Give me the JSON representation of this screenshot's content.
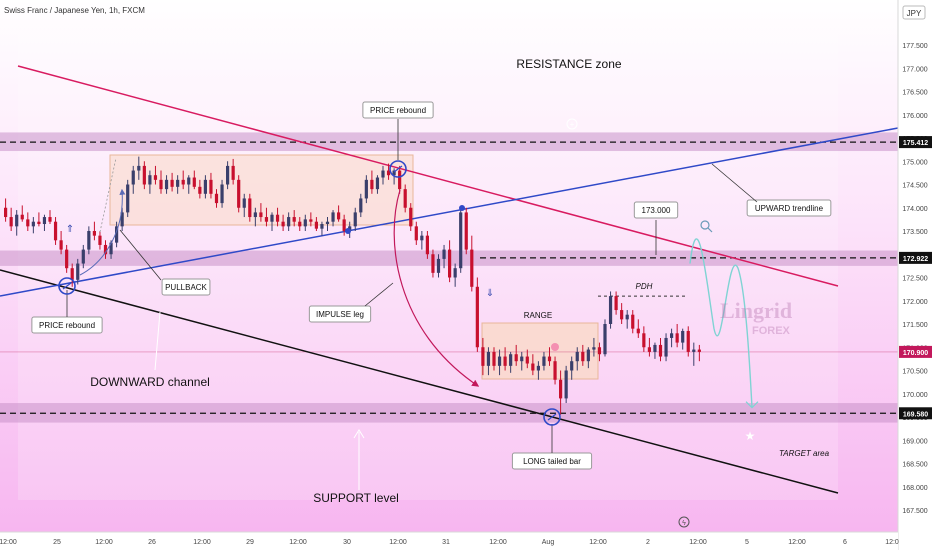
{
  "header": {
    "symbol_title": "Swiss Franc / Japanese Yen, 1h, FXCM",
    "currency": "JPY"
  },
  "colors": {
    "background_top": "#ffffff",
    "background_bottom": "#f7b6f0",
    "up_candle": "#3a3f6b",
    "down_candle": "#c8102e",
    "channel_upper": "#d81b60",
    "channel_lower": "#111111",
    "trendline": "#2f49c8",
    "zone_fill": "#c991c9",
    "range_fill": "#f9d9c6",
    "projection": "#7fd3d3",
    "price_tag_bg": "#c2185b"
  },
  "chart_data": {
    "type": "candlestick",
    "title": "Swiss Franc / Japanese Yen, 1h, FXCM",
    "yaxis": {
      "ticks": [
        "177.500",
        "177.000",
        "176.500",
        "176.000",
        "175.500",
        "175.000",
        "174.500",
        "174.000",
        "173.500",
        "173.000",
        "172.500",
        "172.000",
        "171.500",
        "171.000",
        "170.500",
        "170.000",
        "169.500",
        "169.000",
        "168.500",
        "168.000",
        "167.500"
      ],
      "range": [
        167.15,
        177.95
      ]
    },
    "xaxis": {
      "ticks": [
        "12:00",
        "25",
        "12:00",
        "26",
        "12:00",
        "29",
        "12:00",
        "30",
        "12:00",
        "31",
        "12:00",
        "Aug",
        "12:00",
        "2",
        "12:00",
        "5",
        "12:00",
        "6",
        "12:0"
      ]
    },
    "price_tags": [
      {
        "label": "175.412",
        "value": 175.412
      },
      {
        "label": "172.922",
        "value": 172.922
      },
      {
        "label": "170.900",
        "value": 170.9,
        "highlight": true
      },
      {
        "label": "169.580",
        "value": 169.58
      }
    ],
    "zones": [
      {
        "name": "resistance-band",
        "from": 175.22,
        "to": 175.62
      },
      {
        "name": "mid-band",
        "from": 172.75,
        "to": 173.08
      },
      {
        "name": "support-band",
        "from": 169.38,
        "to": 169.8
      }
    ],
    "candles": [
      [
        174.0,
        174.2,
        173.7,
        173.8
      ],
      [
        173.8,
        174.0,
        173.5,
        173.6
      ],
      [
        173.6,
        173.95,
        173.4,
        173.85
      ],
      [
        173.85,
        174.05,
        173.7,
        173.75
      ],
      [
        173.75,
        173.9,
        173.5,
        173.6
      ],
      [
        173.6,
        173.8,
        173.45,
        173.7
      ],
      [
        173.7,
        173.9,
        173.6,
        173.65
      ],
      [
        173.65,
        173.85,
        173.5,
        173.8
      ],
      [
        173.8,
        173.95,
        173.65,
        173.7
      ],
      [
        173.7,
        173.8,
        173.2,
        173.3
      ],
      [
        173.3,
        173.5,
        173.0,
        173.1
      ],
      [
        173.1,
        173.2,
        172.6,
        172.7
      ],
      [
        172.7,
        172.8,
        172.3,
        172.45
      ],
      [
        172.45,
        172.9,
        172.35,
        172.8
      ],
      [
        172.8,
        173.2,
        172.7,
        173.1
      ],
      [
        173.1,
        173.6,
        173.0,
        173.5
      ],
      [
        173.5,
        173.7,
        173.3,
        173.4
      ],
      [
        173.4,
        173.5,
        173.1,
        173.2
      ],
      [
        173.2,
        173.3,
        172.9,
        173.0
      ],
      [
        173.0,
        173.3,
        172.9,
        173.25
      ],
      [
        173.25,
        173.7,
        173.15,
        173.6
      ],
      [
        173.6,
        174.0,
        173.5,
        173.9
      ],
      [
        173.9,
        174.6,
        173.8,
        174.5
      ],
      [
        174.5,
        174.9,
        174.3,
        174.8
      ],
      [
        174.8,
        175.1,
        174.6,
        174.9
      ],
      [
        174.9,
        175.0,
        174.4,
        174.5
      ],
      [
        174.5,
        174.8,
        174.3,
        174.7
      ],
      [
        174.7,
        174.9,
        174.5,
        174.6
      ],
      [
        174.6,
        174.8,
        174.3,
        174.4
      ],
      [
        174.4,
        174.7,
        174.3,
        174.6
      ],
      [
        174.6,
        174.75,
        174.35,
        174.45
      ],
      [
        174.45,
        174.7,
        174.3,
        174.6
      ],
      [
        174.6,
        174.8,
        174.4,
        174.5
      ],
      [
        174.5,
        174.7,
        174.3,
        174.65
      ],
      [
        174.65,
        174.8,
        174.4,
        174.45
      ],
      [
        174.45,
        174.6,
        174.2,
        174.3
      ],
      [
        174.3,
        174.7,
        174.2,
        174.6
      ],
      [
        174.6,
        174.75,
        174.2,
        174.3
      ],
      [
        174.3,
        174.4,
        174.0,
        174.1
      ],
      [
        174.1,
        174.6,
        174.0,
        174.5
      ],
      [
        174.5,
        175.0,
        174.4,
        174.9
      ],
      [
        174.9,
        175.05,
        174.5,
        174.6
      ],
      [
        174.6,
        174.7,
        173.9,
        174.0
      ],
      [
        174.0,
        174.3,
        173.8,
        174.2
      ],
      [
        174.2,
        174.3,
        173.7,
        173.8
      ],
      [
        173.8,
        174.0,
        173.6,
        173.9
      ],
      [
        173.9,
        174.1,
        173.7,
        173.8
      ],
      [
        173.8,
        174.0,
        173.6,
        173.7
      ],
      [
        173.7,
        173.9,
        173.5,
        173.85
      ],
      [
        173.85,
        174.0,
        173.6,
        173.7
      ],
      [
        173.7,
        173.85,
        173.5,
        173.6
      ],
      [
        173.6,
        173.9,
        173.5,
        173.8
      ],
      [
        173.8,
        173.95,
        173.6,
        173.7
      ],
      [
        173.7,
        173.8,
        173.5,
        173.6
      ],
      [
        173.6,
        173.85,
        173.5,
        173.75
      ],
      [
        173.75,
        173.9,
        173.6,
        173.7
      ],
      [
        173.7,
        173.8,
        173.5,
        173.55
      ],
      [
        173.55,
        173.7,
        173.4,
        173.65
      ],
      [
        173.65,
        173.8,
        173.5,
        173.7
      ],
      [
        173.7,
        173.95,
        173.6,
        173.9
      ],
      [
        173.9,
        174.05,
        173.7,
        173.75
      ],
      [
        173.75,
        173.85,
        173.4,
        173.5
      ],
      [
        173.5,
        173.7,
        173.35,
        173.6
      ],
      [
        173.6,
        174.0,
        173.5,
        173.9
      ],
      [
        173.9,
        174.3,
        173.8,
        174.2
      ],
      [
        174.2,
        174.7,
        174.1,
        174.6
      ],
      [
        174.6,
        174.8,
        174.3,
        174.4
      ],
      [
        174.4,
        174.7,
        174.3,
        174.65
      ],
      [
        174.65,
        174.9,
        174.5,
        174.8
      ],
      [
        174.8,
        174.95,
        174.6,
        174.7
      ],
      [
        174.7,
        174.85,
        174.5,
        174.8
      ],
      [
        174.8,
        174.9,
        174.3,
        174.4
      ],
      [
        174.4,
        174.5,
        173.9,
        174.0
      ],
      [
        174.0,
        174.1,
        173.5,
        173.6
      ],
      [
        173.6,
        173.7,
        173.2,
        173.3
      ],
      [
        173.3,
        173.5,
        173.1,
        173.4
      ],
      [
        173.4,
        173.5,
        172.9,
        173.0
      ],
      [
        173.0,
        173.1,
        172.5,
        172.6
      ],
      [
        172.6,
        173.0,
        172.5,
        172.9
      ],
      [
        172.9,
        173.2,
        172.7,
        173.1
      ],
      [
        173.1,
        173.3,
        172.4,
        172.5
      ],
      [
        172.5,
        172.8,
        172.3,
        172.7
      ],
      [
        172.7,
        174.0,
        172.6,
        173.9
      ],
      [
        173.9,
        174.0,
        173.0,
        173.1
      ],
      [
        173.1,
        173.4,
        172.2,
        172.3
      ],
      [
        172.3,
        172.5,
        170.9,
        171.0
      ],
      [
        171.0,
        171.2,
        170.4,
        170.6
      ],
      [
        170.6,
        171.0,
        170.4,
        170.9
      ],
      [
        170.9,
        171.0,
        170.5,
        170.6
      ],
      [
        170.6,
        170.95,
        170.4,
        170.8
      ],
      [
        170.8,
        171.0,
        170.5,
        170.6
      ],
      [
        170.6,
        170.9,
        170.45,
        170.85
      ],
      [
        170.85,
        171.05,
        170.6,
        170.7
      ],
      [
        170.7,
        170.9,
        170.5,
        170.8
      ],
      [
        170.8,
        170.95,
        170.55,
        170.65
      ],
      [
        170.65,
        170.85,
        170.4,
        170.5
      ],
      [
        170.5,
        170.7,
        170.3,
        170.6
      ],
      [
        170.6,
        170.9,
        170.5,
        170.8
      ],
      [
        170.8,
        171.0,
        170.6,
        170.7
      ],
      [
        170.7,
        170.8,
        170.2,
        170.3
      ],
      [
        170.3,
        170.5,
        169.55,
        169.9
      ],
      [
        169.9,
        170.6,
        169.8,
        170.5
      ],
      [
        170.5,
        170.8,
        170.3,
        170.7
      ],
      [
        170.7,
        171.0,
        170.5,
        170.9
      ],
      [
        170.9,
        171.05,
        170.6,
        170.7
      ],
      [
        170.7,
        171.0,
        170.55,
        170.95
      ],
      [
        170.95,
        171.2,
        170.8,
        171.0
      ],
      [
        171.0,
        171.1,
        170.7,
        170.85
      ],
      [
        170.85,
        171.6,
        170.8,
        171.5
      ],
      [
        171.5,
        172.2,
        171.4,
        172.1
      ],
      [
        172.1,
        172.2,
        171.7,
        171.8
      ],
      [
        171.8,
        171.95,
        171.5,
        171.6
      ],
      [
        171.6,
        171.8,
        171.4,
        171.7
      ],
      [
        171.7,
        171.8,
        171.3,
        171.4
      ],
      [
        171.4,
        171.6,
        171.2,
        171.3
      ],
      [
        171.3,
        171.45,
        170.9,
        171.0
      ],
      [
        171.0,
        171.2,
        170.8,
        170.9
      ],
      [
        170.9,
        171.1,
        170.75,
        171.05
      ],
      [
        171.05,
        171.2,
        170.7,
        170.8
      ],
      [
        170.8,
        171.3,
        170.7,
        171.2
      ],
      [
        171.2,
        171.4,
        171.0,
        171.3
      ],
      [
        171.3,
        171.5,
        171.0,
        171.1
      ],
      [
        171.1,
        171.4,
        170.95,
        171.35
      ],
      [
        171.35,
        171.45,
        170.8,
        170.9
      ],
      [
        170.9,
        171.1,
        170.6,
        170.95
      ],
      [
        170.95,
        171.05,
        170.7,
        170.9
      ]
    ],
    "projection": [
      172.8,
      173.6,
      172.0,
      171.4,
      172.7,
      171.2,
      169.7
    ],
    "annotations": {
      "resistance": "RESISTANCE zone",
      "downward_channel": "DOWNWARD channel",
      "support": "SUPPORT level",
      "pullback": "PULLBACK",
      "price_rebound_left": "PRICE rebound",
      "price_rebound_top": "PRICE rebound",
      "impulse": "IMPULSE leg",
      "range": "RANGE",
      "pdh": "PDH",
      "level_173": "173.000",
      "upward_trendline": "UPWARD trendline",
      "long_tailed": "LONG tailed bar",
      "target": "TARGET area"
    }
  },
  "watermark": {
    "brand": "Lingrid",
    "sub": "FOREX"
  }
}
